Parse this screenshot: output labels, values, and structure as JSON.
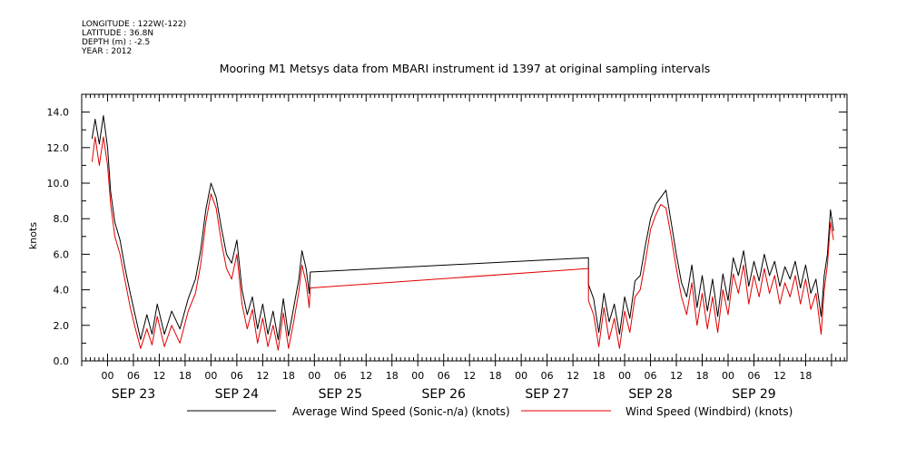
{
  "metadata": {
    "longitude": "LONGITUDE : 122W(-122)",
    "latitude": "LATITUDE : 36.8N",
    "depth": "DEPTH (m) : -2.5",
    "year": "YEAR : 2012"
  },
  "chart_data": {
    "type": "line",
    "title": "Mooring M1 Metsys data from MBARI instrument id 1397 at original sampling intervals",
    "ylabel": "knots",
    "xlabel": "",
    "ylim": [
      0,
      15
    ],
    "xlim": [
      -0.25,
      7.15
    ],
    "x_unit": "days since 2012-09-23 00:00",
    "y_ticks": [
      "0.0",
      "2.0",
      "4.0",
      "6.0",
      "8.0",
      "10.0",
      "12.0",
      "14.0"
    ],
    "y_tick_values": [
      0,
      2,
      4,
      6,
      8,
      10,
      12,
      14
    ],
    "hour_ticks": [
      "00",
      "06",
      "12",
      "18",
      "00",
      "06",
      "12",
      "18",
      "00",
      "06",
      "12",
      "18",
      "00",
      "06",
      "12",
      "18",
      "00",
      "06",
      "12",
      "18",
      "00",
      "06",
      "12",
      "18",
      "00",
      "06",
      "12",
      "18"
    ],
    "day_labels": [
      "SEP 23",
      "SEP 24",
      "SEP 25",
      "SEP 26",
      "SEP 27",
      "SEP 28",
      "SEP 29"
    ],
    "grid": false,
    "legend_position": "bottom",
    "series": [
      {
        "name": "Average Wind Speed (Sonic-n/a) (knots)",
        "color": "#000000",
        "points": [
          [
            -0.15,
            12.5
          ],
          [
            -0.12,
            13.6
          ],
          [
            -0.08,
            12.2
          ],
          [
            -0.04,
            13.8
          ],
          [
            0.0,
            12.0
          ],
          [
            0.03,
            9.5
          ],
          [
            0.07,
            7.8
          ],
          [
            0.12,
            6.8
          ],
          [
            0.17,
            5.2
          ],
          [
            0.22,
            3.8
          ],
          [
            0.27,
            2.5
          ],
          [
            0.32,
            1.2
          ],
          [
            0.38,
            2.6
          ],
          [
            0.43,
            1.5
          ],
          [
            0.48,
            3.2
          ],
          [
            0.55,
            1.5
          ],
          [
            0.62,
            2.8
          ],
          [
            0.7,
            1.8
          ],
          [
            0.78,
            3.5
          ],
          [
            0.85,
            4.6
          ],
          [
            0.9,
            6.2
          ],
          [
            0.95,
            8.5
          ],
          [
            1.0,
            10.0
          ],
          [
            1.05,
            9.2
          ],
          [
            1.1,
            7.5
          ],
          [
            1.15,
            6.0
          ],
          [
            1.2,
            5.5
          ],
          [
            1.25,
            6.8
          ],
          [
            1.3,
            4.0
          ],
          [
            1.35,
            2.6
          ],
          [
            1.4,
            3.6
          ],
          [
            1.45,
            1.8
          ],
          [
            1.5,
            3.2
          ],
          [
            1.55,
            1.5
          ],
          [
            1.6,
            2.8
          ],
          [
            1.65,
            1.2
          ],
          [
            1.7,
            3.5
          ],
          [
            1.75,
            1.4
          ],
          [
            1.8,
            3.0
          ],
          [
            1.85,
            4.6
          ],
          [
            1.88,
            6.2
          ],
          [
            1.92,
            5.2
          ],
          [
            1.95,
            3.8
          ],
          [
            1.96,
            5.0
          ],
          [
            4.65,
            5.8
          ],
          [
            4.65,
            4.3
          ],
          [
            4.7,
            3.5
          ],
          [
            4.75,
            1.6
          ],
          [
            4.8,
            3.8
          ],
          [
            4.85,
            2.2
          ],
          [
            4.9,
            3.2
          ],
          [
            4.95,
            1.5
          ],
          [
            5.0,
            3.6
          ],
          [
            5.05,
            2.4
          ],
          [
            5.1,
            4.5
          ],
          [
            5.15,
            4.8
          ],
          [
            5.2,
            6.5
          ],
          [
            5.25,
            8.0
          ],
          [
            5.3,
            8.8
          ],
          [
            5.35,
            9.2
          ],
          [
            5.4,
            9.6
          ],
          [
            5.45,
            7.8
          ],
          [
            5.5,
            6.0
          ],
          [
            5.55,
            4.4
          ],
          [
            5.6,
            3.6
          ],
          [
            5.65,
            5.4
          ],
          [
            5.7,
            3.0
          ],
          [
            5.75,
            4.8
          ],
          [
            5.8,
            2.8
          ],
          [
            5.85,
            4.6
          ],
          [
            5.9,
            2.5
          ],
          [
            5.95,
            4.9
          ],
          [
            6.0,
            3.4
          ],
          [
            6.05,
            5.8
          ],
          [
            6.1,
            4.8
          ],
          [
            6.15,
            6.2
          ],
          [
            6.2,
            4.2
          ],
          [
            6.25,
            5.6
          ],
          [
            6.3,
            4.5
          ],
          [
            6.35,
            6.0
          ],
          [
            6.4,
            4.8
          ],
          [
            6.45,
            5.6
          ],
          [
            6.5,
            4.2
          ],
          [
            6.55,
            5.3
          ],
          [
            6.6,
            4.6
          ],
          [
            6.65,
            5.6
          ],
          [
            6.7,
            4.1
          ],
          [
            6.75,
            5.4
          ],
          [
            6.8,
            3.8
          ],
          [
            6.85,
            4.6
          ],
          [
            6.9,
            2.5
          ],
          [
            6.93,
            4.8
          ],
          [
            6.96,
            6.0
          ],
          [
            6.99,
            8.5
          ],
          [
            7.02,
            7.3
          ]
        ]
      },
      {
        "name": "Wind Speed (Windbird) (knots)",
        "color": "#e00000",
        "points": [
          [
            -0.15,
            11.2
          ],
          [
            -0.12,
            12.6
          ],
          [
            -0.08,
            11.0
          ],
          [
            -0.04,
            12.6
          ],
          [
            0.0,
            11.0
          ],
          [
            0.03,
            8.8
          ],
          [
            0.07,
            7.0
          ],
          [
            0.12,
            6.0
          ],
          [
            0.17,
            4.5
          ],
          [
            0.22,
            3.0
          ],
          [
            0.27,
            1.8
          ],
          [
            0.32,
            0.7
          ],
          [
            0.38,
            1.8
          ],
          [
            0.43,
            0.9
          ],
          [
            0.48,
            2.5
          ],
          [
            0.55,
            0.8
          ],
          [
            0.62,
            2.0
          ],
          [
            0.7,
            1.0
          ],
          [
            0.78,
            2.8
          ],
          [
            0.85,
            3.8
          ],
          [
            0.9,
            5.4
          ],
          [
            0.95,
            7.8
          ],
          [
            1.0,
            9.4
          ],
          [
            1.05,
            8.6
          ],
          [
            1.1,
            6.7
          ],
          [
            1.15,
            5.2
          ],
          [
            1.2,
            4.6
          ],
          [
            1.25,
            6.0
          ],
          [
            1.3,
            3.2
          ],
          [
            1.35,
            1.8
          ],
          [
            1.4,
            2.9
          ],
          [
            1.45,
            1.0
          ],
          [
            1.5,
            2.4
          ],
          [
            1.55,
            0.8
          ],
          [
            1.6,
            2.0
          ],
          [
            1.65,
            0.6
          ],
          [
            1.7,
            2.7
          ],
          [
            1.75,
            0.7
          ],
          [
            1.8,
            2.2
          ],
          [
            1.85,
            3.9
          ],
          [
            1.88,
            5.4
          ],
          [
            1.92,
            4.4
          ],
          [
            1.95,
            3.0
          ],
          [
            1.96,
            4.1
          ],
          [
            4.65,
            5.2
          ],
          [
            4.65,
            3.4
          ],
          [
            4.7,
            2.6
          ],
          [
            4.75,
            0.8
          ],
          [
            4.8,
            3.0
          ],
          [
            4.85,
            1.2
          ],
          [
            4.9,
            2.4
          ],
          [
            4.95,
            0.7
          ],
          [
            5.0,
            2.8
          ],
          [
            5.05,
            1.6
          ],
          [
            5.1,
            3.6
          ],
          [
            5.15,
            4.0
          ],
          [
            5.2,
            5.6
          ],
          [
            5.25,
            7.4
          ],
          [
            5.3,
            8.2
          ],
          [
            5.35,
            8.8
          ],
          [
            5.4,
            8.6
          ],
          [
            5.45,
            7.0
          ],
          [
            5.5,
            5.2
          ],
          [
            5.55,
            3.6
          ],
          [
            5.6,
            2.6
          ],
          [
            5.65,
            4.4
          ],
          [
            5.7,
            2.0
          ],
          [
            5.75,
            3.8
          ],
          [
            5.8,
            1.8
          ],
          [
            5.85,
            3.6
          ],
          [
            5.9,
            1.6
          ],
          [
            5.95,
            4.0
          ],
          [
            6.0,
            2.6
          ],
          [
            6.05,
            4.9
          ],
          [
            6.1,
            3.8
          ],
          [
            6.15,
            5.4
          ],
          [
            6.2,
            3.2
          ],
          [
            6.25,
            4.8
          ],
          [
            6.3,
            3.6
          ],
          [
            6.35,
            5.2
          ],
          [
            6.4,
            3.8
          ],
          [
            6.45,
            4.8
          ],
          [
            6.5,
            3.2
          ],
          [
            6.55,
            4.4
          ],
          [
            6.6,
            3.6
          ],
          [
            6.65,
            4.8
          ],
          [
            6.7,
            3.2
          ],
          [
            6.75,
            4.6
          ],
          [
            6.8,
            2.9
          ],
          [
            6.85,
            3.8
          ],
          [
            6.9,
            1.5
          ],
          [
            6.93,
            4.0
          ],
          [
            6.96,
            5.4
          ],
          [
            6.99,
            7.8
          ],
          [
            7.02,
            6.8
          ]
        ]
      }
    ]
  }
}
